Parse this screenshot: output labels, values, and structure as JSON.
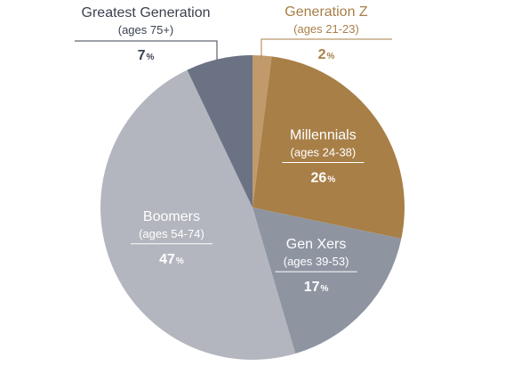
{
  "chart_data": {
    "type": "pie",
    "title": "",
    "start_angle_deg": 0,
    "direction": "clockwise",
    "slices": [
      {
        "name": "Generation Z",
        "ages": "(ages 21-23)",
        "value": 2,
        "display": "2",
        "unit": "%",
        "color": "#c19a6b",
        "text_color": "#a87f47",
        "label_placement": "outside-top-right"
      },
      {
        "name": "Millennials",
        "ages": "(ages 24-38)",
        "value": 26,
        "display": "26",
        "unit": "%",
        "color": "#a87f47",
        "text_color": "#ffffff",
        "label_placement": "inside"
      },
      {
        "name": "Gen Xers",
        "ages": "(ages 39-53)",
        "value": 17,
        "display": "17",
        "unit": "%",
        "color": "#8e95a1",
        "text_color": "#ffffff",
        "label_placement": "inside"
      },
      {
        "name": "Boomers",
        "ages": "(ages 54-74)",
        "value": 47,
        "display": "47",
        "unit": "%",
        "color": "#b3b6be",
        "text_color": "#ffffff",
        "label_placement": "inside"
      },
      {
        "name": "Greatest Generation",
        "ages": "(ages 75+)",
        "value": 7,
        "display": "7",
        "unit": "%",
        "color": "#6b7283",
        "text_color": "#3b4150",
        "label_placement": "outside-top-left"
      }
    ]
  }
}
